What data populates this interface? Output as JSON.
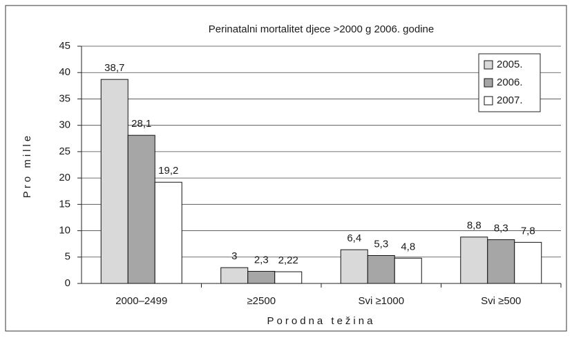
{
  "chart_data": {
    "type": "bar",
    "title": "Perinatalni mortalitet djece >2000 g 2006. godine",
    "x_label": "Porodna težina",
    "y_label": "Pro mille",
    "categories": [
      "2000–2499",
      "≥2500",
      "Svi ≥1000",
      "Svi ≥500"
    ],
    "series": [
      {
        "name": "2005.",
        "color": "#d9d9d9",
        "values": [
          38.7,
          3,
          6.4,
          8.8
        ],
        "value_labels": [
          "38,7",
          "3",
          "6,4",
          "8,8"
        ]
      },
      {
        "name": "2006.",
        "color": "#a6a6a6",
        "values": [
          28.1,
          2.3,
          5.3,
          8.3
        ],
        "value_labels": [
          "28,1",
          "2,3",
          "5,3",
          "8,3"
        ]
      },
      {
        "name": "2007.",
        "color": "#ffffff",
        "values": [
          19.2,
          2.22,
          4.8,
          7.8
        ],
        "value_labels": [
          "19,2",
          "2,22",
          "4,8",
          "7,8"
        ]
      }
    ],
    "ylim": [
      0,
      45
    ],
    "yticks": [
      0,
      5,
      10,
      15,
      20,
      25,
      30,
      35,
      40,
      45
    ],
    "grid": true,
    "legend": "upper right"
  }
}
